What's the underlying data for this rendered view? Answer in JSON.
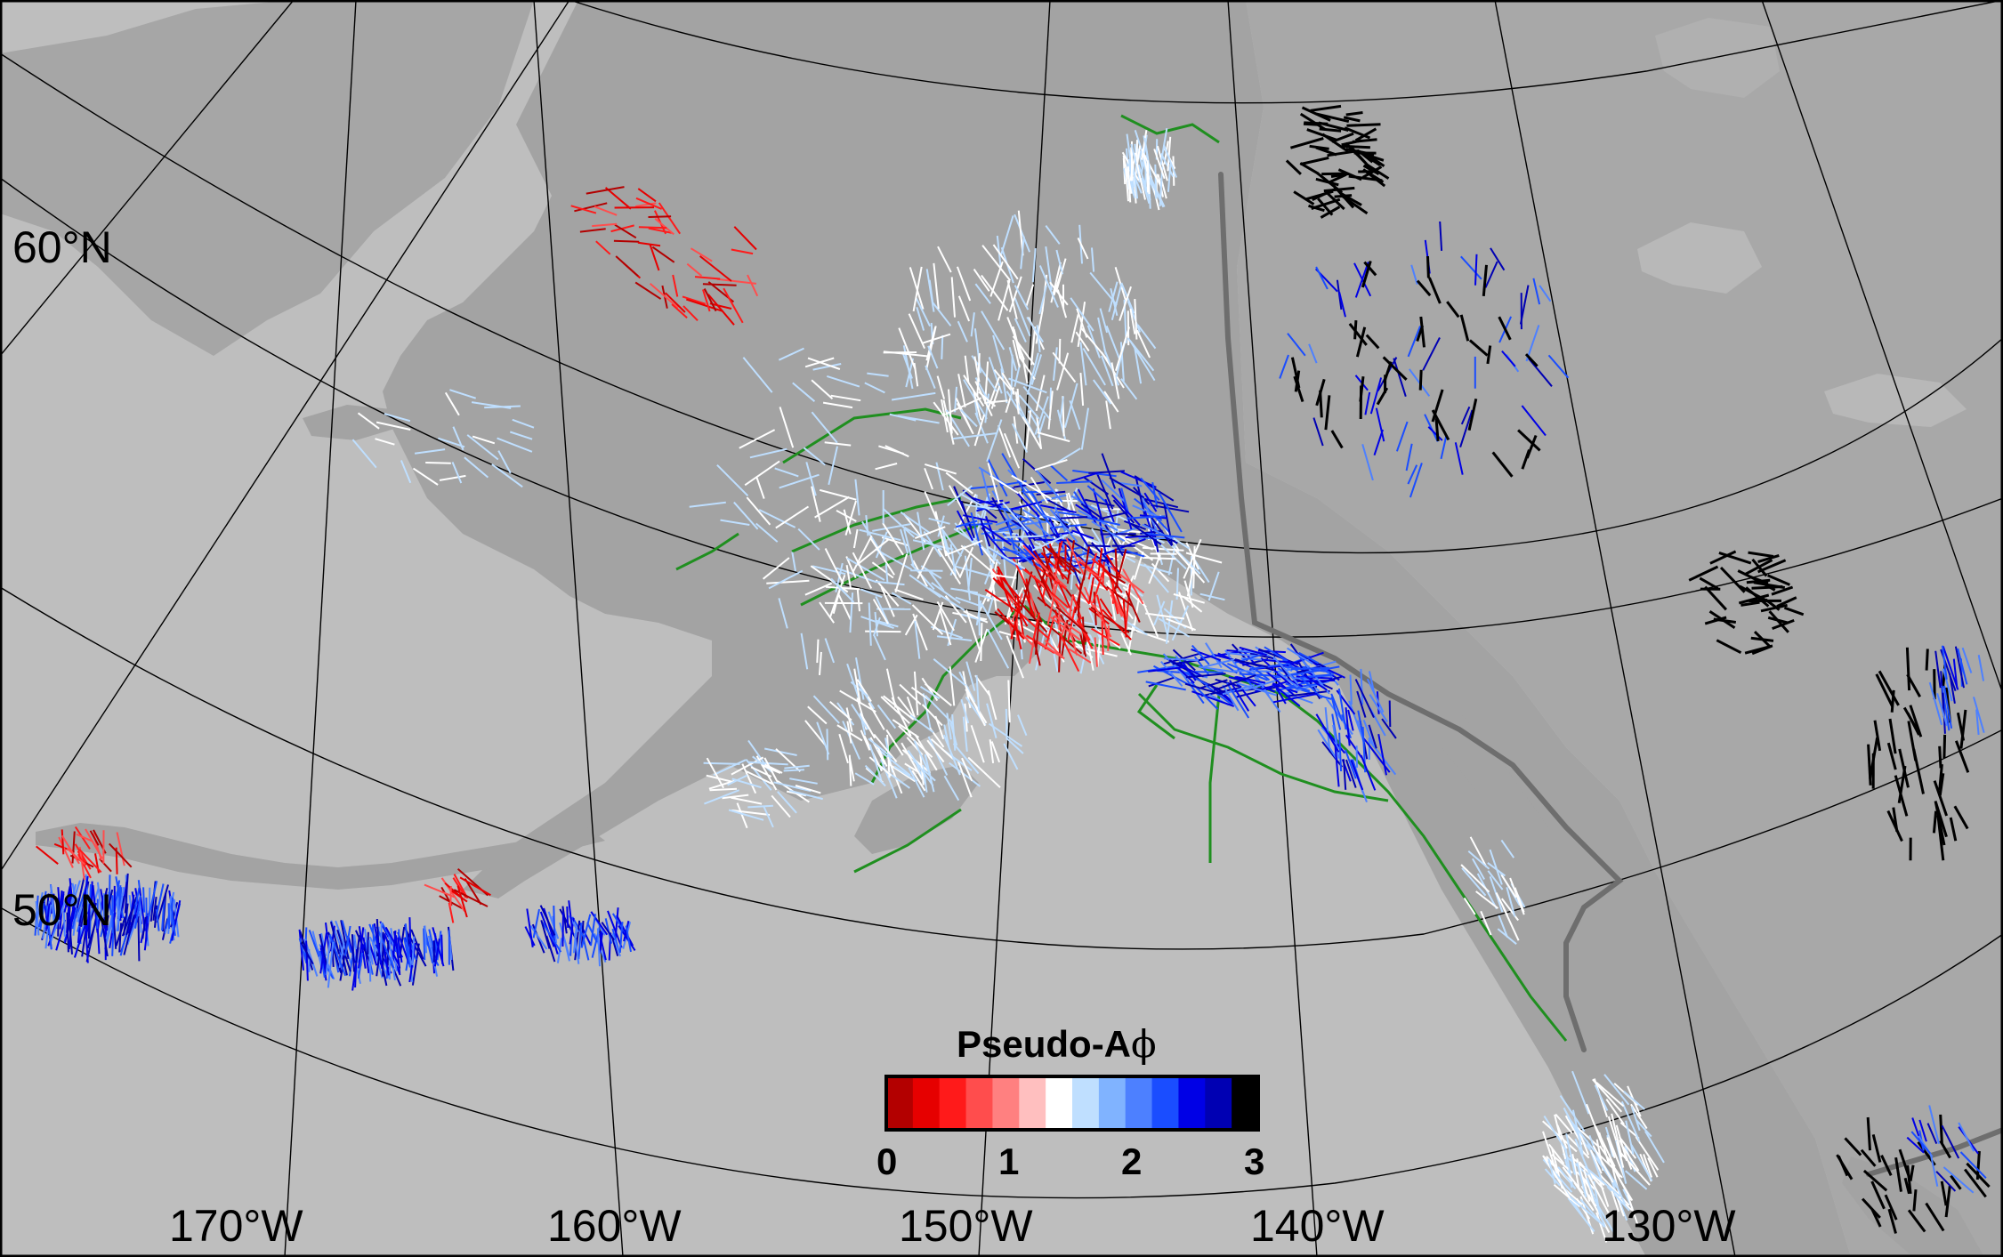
{
  "map": {
    "latitude_labels": [
      "60°N",
      "50°N"
    ],
    "longitude_labels": [
      "170°W",
      "160°W",
      "150°W",
      "140°W",
      "130°W"
    ],
    "colorbar": {
      "title": "Pseudo-Aϕ",
      "title_prefix": "Pseudo-A",
      "title_symbol": "ϕ",
      "tick_labels": [
        "0",
        "1",
        "2",
        "3"
      ],
      "colors": [
        "#b30000",
        "#e60000",
        "#ff1a1a",
        "#ff4d4d",
        "#ff8080",
        "#ffbfbf",
        "#ffffff",
        "#bfdfff",
        "#80b3ff",
        "#4d80ff",
        "#1a4dff",
        "#0000e6",
        "#0000b3",
        "#000000"
      ]
    },
    "colors": {
      "background": "#bebebe",
      "land": "#a8a8a8",
      "land_dark": "#9e9e9e",
      "faults": "#228b22",
      "plate_boundary": "#707070",
      "grid": "#000000"
    }
  }
}
